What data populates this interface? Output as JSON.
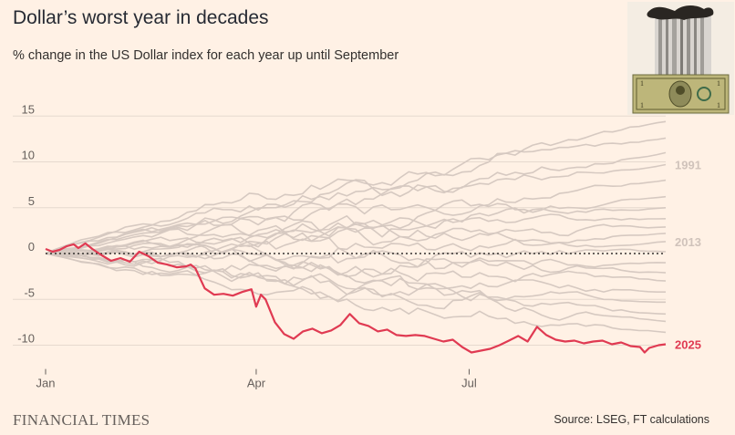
{
  "title": "Dollar’s worst year in decades",
  "subtitle": "% change in the US Dollar index for each year up until September",
  "brand": "FINANCIAL TIMES",
  "source": "Source: LSEG, FT calculations",
  "colors": {
    "background": "#FFF1E5",
    "highlight": "#E03A52",
    "other_years": "#D6C9C1",
    "grid": "#E6D9CE",
    "zero_line": "#33302E",
    "muted_label": "#D0C3BB"
  },
  "chart_data": {
    "type": "line",
    "title": "Dollar’s worst year in decades",
    "subtitle": "% change in the US Dollar index for each year up until September",
    "xlabel": "",
    "ylabel": "",
    "ylim": [
      -13,
      17
    ],
    "y_ticks": [
      15,
      10,
      5,
      0,
      -5,
      -10
    ],
    "x_range_days": [
      0,
      265
    ],
    "x_ticks": [
      {
        "label": "Jan",
        "day": 0
      },
      {
        "label": "Apr",
        "day": 90
      },
      {
        "label": "Jul",
        "day": 181
      }
    ],
    "zero_line": "dotted",
    "highlight_series": {
      "name": "2025",
      "points": [
        [
          0,
          0.5
        ],
        [
          3,
          0.2
        ],
        [
          6,
          0.4
        ],
        [
          9,
          0.8
        ],
        [
          12,
          1.0
        ],
        [
          14,
          0.6
        ],
        [
          17,
          1.1
        ],
        [
          20,
          0.5
        ],
        [
          24,
          -0.2
        ],
        [
          28,
          -0.8
        ],
        [
          32,
          -0.5
        ],
        [
          36,
          -0.9
        ],
        [
          40,
          0.2
        ],
        [
          44,
          -0.3
        ],
        [
          48,
          -1.0
        ],
        [
          52,
          -1.2
        ],
        [
          56,
          -1.5
        ],
        [
          60,
          -1.4
        ],
        [
          62,
          -1.2
        ],
        [
          64,
          -1.6
        ],
        [
          68,
          -3.8
        ],
        [
          72,
          -4.5
        ],
        [
          76,
          -4.4
        ],
        [
          80,
          -4.6
        ],
        [
          84,
          -4.2
        ],
        [
          88,
          -3.9
        ],
        [
          90,
          -5.8
        ],
        [
          92,
          -4.5
        ],
        [
          94,
          -5.0
        ],
        [
          98,
          -7.5
        ],
        [
          102,
          -8.8
        ],
        [
          106,
          -9.3
        ],
        [
          110,
          -8.5
        ],
        [
          114,
          -8.2
        ],
        [
          118,
          -8.7
        ],
        [
          122,
          -8.4
        ],
        [
          126,
          -7.8
        ],
        [
          130,
          -6.6
        ],
        [
          134,
          -7.6
        ],
        [
          138,
          -7.9
        ],
        [
          142,
          -8.5
        ],
        [
          146,
          -8.3
        ],
        [
          150,
          -8.9
        ],
        [
          154,
          -9.0
        ],
        [
          158,
          -8.9
        ],
        [
          162,
          -9.0
        ],
        [
          166,
          -9.3
        ],
        [
          170,
          -9.6
        ],
        [
          174,
          -9.4
        ],
        [
          178,
          -10.2
        ],
        [
          182,
          -10.8
        ],
        [
          186,
          -10.6
        ],
        [
          190,
          -10.4
        ],
        [
          194,
          -10.0
        ],
        [
          198,
          -9.5
        ],
        [
          202,
          -9.0
        ],
        [
          206,
          -9.6
        ],
        [
          210,
          -8.0
        ],
        [
          214,
          -8.9
        ],
        [
          218,
          -9.4
        ],
        [
          222,
          -9.6
        ],
        [
          226,
          -9.5
        ],
        [
          230,
          -9.8
        ],
        [
          234,
          -9.6
        ],
        [
          238,
          -9.5
        ],
        [
          242,
          -9.9
        ],
        [
          246,
          -9.7
        ],
        [
          250,
          -10.1
        ],
        [
          254,
          -10.2
        ],
        [
          256,
          -10.8
        ],
        [
          258,
          -10.3
        ],
        [
          262,
          -10.0
        ],
        [
          265,
          -9.9
        ]
      ]
    },
    "labeled_series": [
      {
        "name": "1991",
        "end_value": 9.7
      },
      {
        "name": "2013",
        "end_value": 1.3
      }
    ],
    "other_series_end_values": [
      14.4,
      12.6,
      11.0,
      9.7,
      8.0,
      6.2,
      5.0,
      3.8,
      2.9,
      2.2,
      1.3,
      0.2,
      -1.0,
      -2.1,
      -3.0,
      -4.2,
      -5.3,
      -6.6,
      -7.4,
      -8.6
    ]
  }
}
